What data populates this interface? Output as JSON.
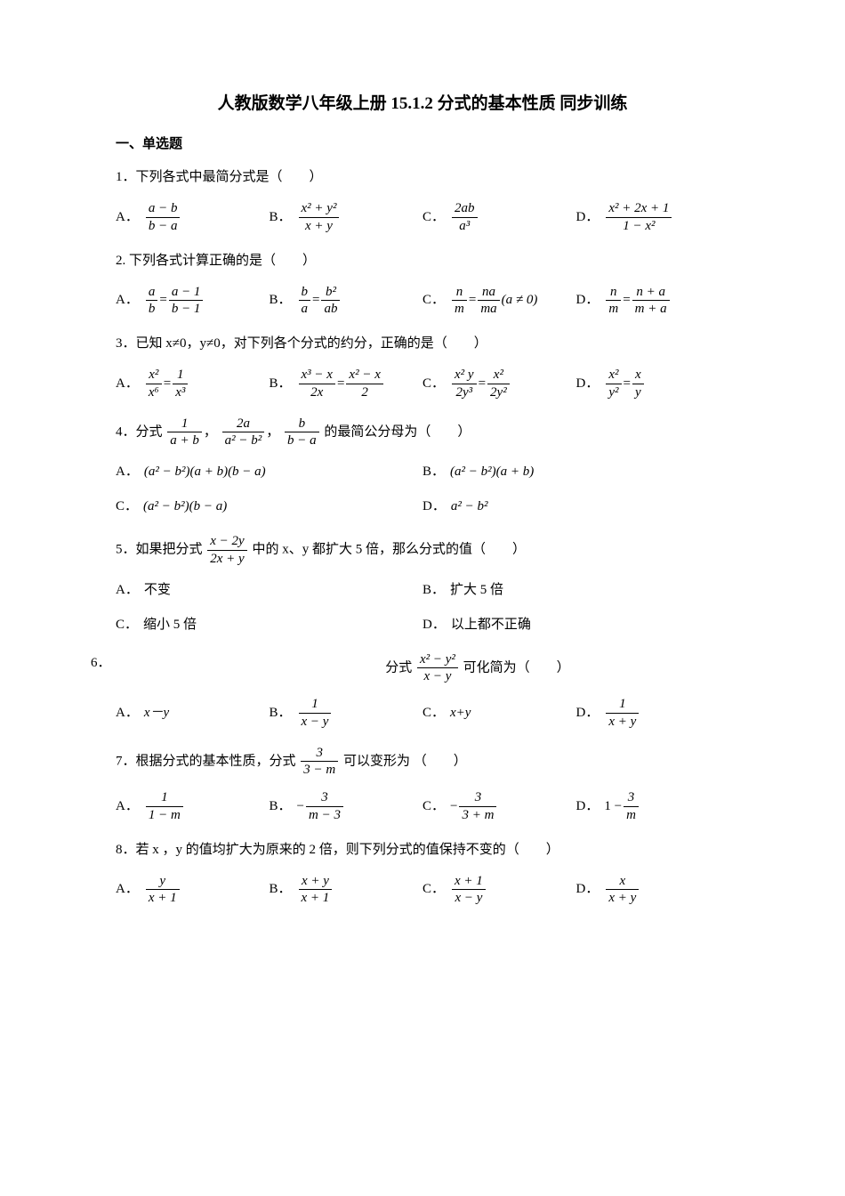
{
  "title": "人教版数学八年级上册 15.1.2 分式的基本性质 同步训练",
  "section1": "一、单选题",
  "q1": {
    "stem": "1．下列各式中最简分式是（　　）",
    "A_num": "a − b",
    "A_den": "b − a",
    "B_num": "x² + y²",
    "B_den": "x + y",
    "C_num": "2ab",
    "C_den": "a³",
    "D_num": "x² + 2x + 1",
    "D_den": "1 − x²"
  },
  "q2": {
    "stem": "2. 下列各式计算正确的是（　　）",
    "A_l_num": "a",
    "A_l_den": "b",
    "A_r_num": "a − 1",
    "A_r_den": "b − 1",
    "B_l_num": "b",
    "B_l_den": "a",
    "B_r_num": "b²",
    "B_r_den": "ab",
    "C_l_num": "n",
    "C_l_den": "m",
    "C_r_num": "na",
    "C_r_den": "ma",
    "C_cond": "(a ≠ 0)",
    "D_l_num": "n",
    "D_l_den": "m",
    "D_r_num": "n + a",
    "D_r_den": "m + a"
  },
  "q3": {
    "stem": "3．已知 x≠0，y≠0，对下列各个分式的约分，正确的是（　　）",
    "A_l_num": "x²",
    "A_l_den": "x⁶",
    "A_r_num": "1",
    "A_r_den": "x³",
    "B_l_num": "x³ − x",
    "B_l_den": "2x",
    "B_r_num": "x² − x",
    "B_r_den": "2",
    "C_l_num": "x² y",
    "C_l_den": "2y³",
    "C_r_num": "x²",
    "C_r_den": "2y²",
    "D_l_num": "x²",
    "D_l_den": "y²",
    "D_r_num": "x",
    "D_r_den": "y"
  },
  "q4": {
    "stem_pre": "4．分式",
    "f1_num": "1",
    "f1_den": "a + b",
    "f2_num": "2a",
    "f2_den": "a² − b²",
    "f3_num": "b",
    "f3_den": "b − a",
    "stem_post": "的最简公分母为（　　）",
    "A": "(a² − b²)(a + b)(b − a)",
    "B": "(a² − b²)(a + b)",
    "C": "(a² − b²)(b − a)",
    "D": "a² − b²"
  },
  "q5": {
    "stem_pre": "5．如果把分式",
    "f_num": "x − 2y",
    "f_den": "2x + y",
    "stem_post": "中的 x、y 都扩大 5 倍，那么分式的值（　　）",
    "A": "不变",
    "B": "扩大 5 倍",
    "C": "缩小 5 倍",
    "D": "以上都不正确"
  },
  "q6": {
    "num_label": "6．",
    "stem_pre": "分式",
    "f_num": "x² − y²",
    "f_den": "x − y",
    "stem_post": "可化简为（　　）",
    "A": "x－y",
    "B_num": "1",
    "B_den": "x − y",
    "C": "x+y",
    "D_num": "1",
    "D_den": "x + y"
  },
  "q7": {
    "stem_pre": "7．根据分式的基本性质，分式",
    "f_num": "3",
    "f_den": "3 − m",
    "stem_post": "可以变形为 （　　）",
    "A_num": "1",
    "A_den": "1 − m",
    "B_pre": "−",
    "B_num": "3",
    "B_den": "m − 3",
    "C_pre": "−",
    "C_num": "3",
    "C_den": "3 + m",
    "D_pre": "1 −",
    "D_num": "3",
    "D_den": "m"
  },
  "q8": {
    "stem": "8．若 x ，y 的值均扩大为原来的 2 倍，则下列分式的值保持不变的（　　）",
    "A_num": "y",
    "A_den": "x + 1",
    "B_num": "x + y",
    "B_den": "x + 1",
    "C_num": "x + 1",
    "C_den": "x − y",
    "D_num": "x",
    "D_den": "x + y"
  }
}
